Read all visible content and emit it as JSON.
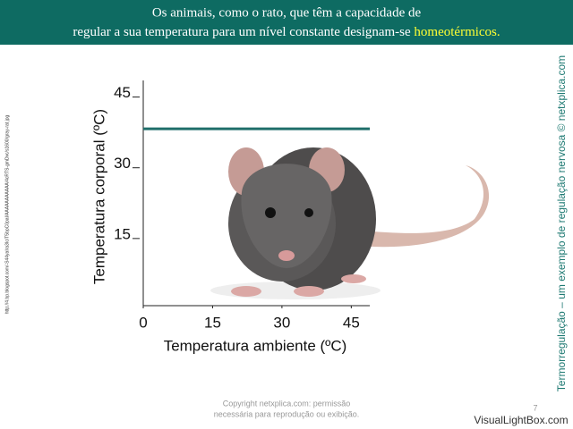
{
  "header": {
    "line1": "Os animais, como o rato, que têm a capacidade de",
    "line2": "regular a sua temperatura para um nível constante designam-se",
    "highlight": "homeotérmicos."
  },
  "source_url": "http://4.bp.blogspot.com/-S44yaIra3Ic/T5bpC0pal/AAAAAAAAAAA/4cRTS-gmDvc/s1600/gray-rat.jpg",
  "side_title": "Termorregulação – um exemplo de regulação nervosa © netxplica.com",
  "footer": {
    "line1": "Copyright netxplica.com: permissão",
    "line2": "necessária para reprodução ou exibição.",
    "page": "7",
    "watermark": "VisualLightBox.com"
  },
  "chart_data": {
    "type": "line",
    "xlabel": "Temperatura ambiente (ºC)",
    "ylabel": "Temperatura corporal (ºC)",
    "x": [
      0,
      49
    ],
    "values": [
      37.5,
      37.5
    ],
    "color": "#1f6e6a",
    "xlim": [
      0,
      49
    ],
    "ylim": [
      0,
      47
    ],
    "xticks": [
      0,
      15,
      30,
      45
    ],
    "yticks": [
      15,
      30,
      45
    ]
  }
}
